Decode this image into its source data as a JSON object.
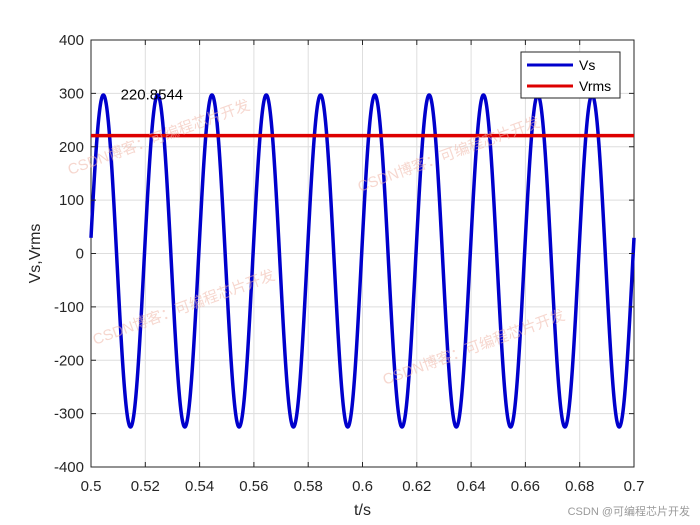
{
  "chart_data": {
    "type": "line",
    "xlabel": "t/s",
    "ylabel": "Vs,Vrms",
    "xlim": [
      0.5,
      0.7
    ],
    "ylim": [
      -400,
      400
    ],
    "xticks": [
      "0.5",
      "0.52",
      "0.54",
      "0.56",
      "0.58",
      "0.6",
      "0.62",
      "0.64",
      "0.66",
      "0.68",
      "0.7"
    ],
    "yticks": [
      "-400",
      "-300",
      "-200",
      "-100",
      "0",
      "100",
      "200",
      "300",
      "400"
    ],
    "grid": true,
    "legend_position": "top-right",
    "series": [
      {
        "name": "Vs",
        "color": "#0000cc",
        "function": "sine",
        "amplitude": 311,
        "offset": -14,
        "frequency_hz": 50,
        "phase_rad": 0.14,
        "x_start": 0.5,
        "x_end": 0.7
      },
      {
        "name": "Vrms",
        "color": "#dd0000",
        "function": "constant",
        "value": 220.8544,
        "x_start": 0.5,
        "x_end": 0.7
      }
    ],
    "annotations": [
      {
        "text": "220.8544",
        "x": 0.505,
        "y": 275
      }
    ]
  },
  "watermark": {
    "text": "CSDN博客：可编程芯片开发",
    "credit": "CSDN @可编程芯片开发"
  }
}
